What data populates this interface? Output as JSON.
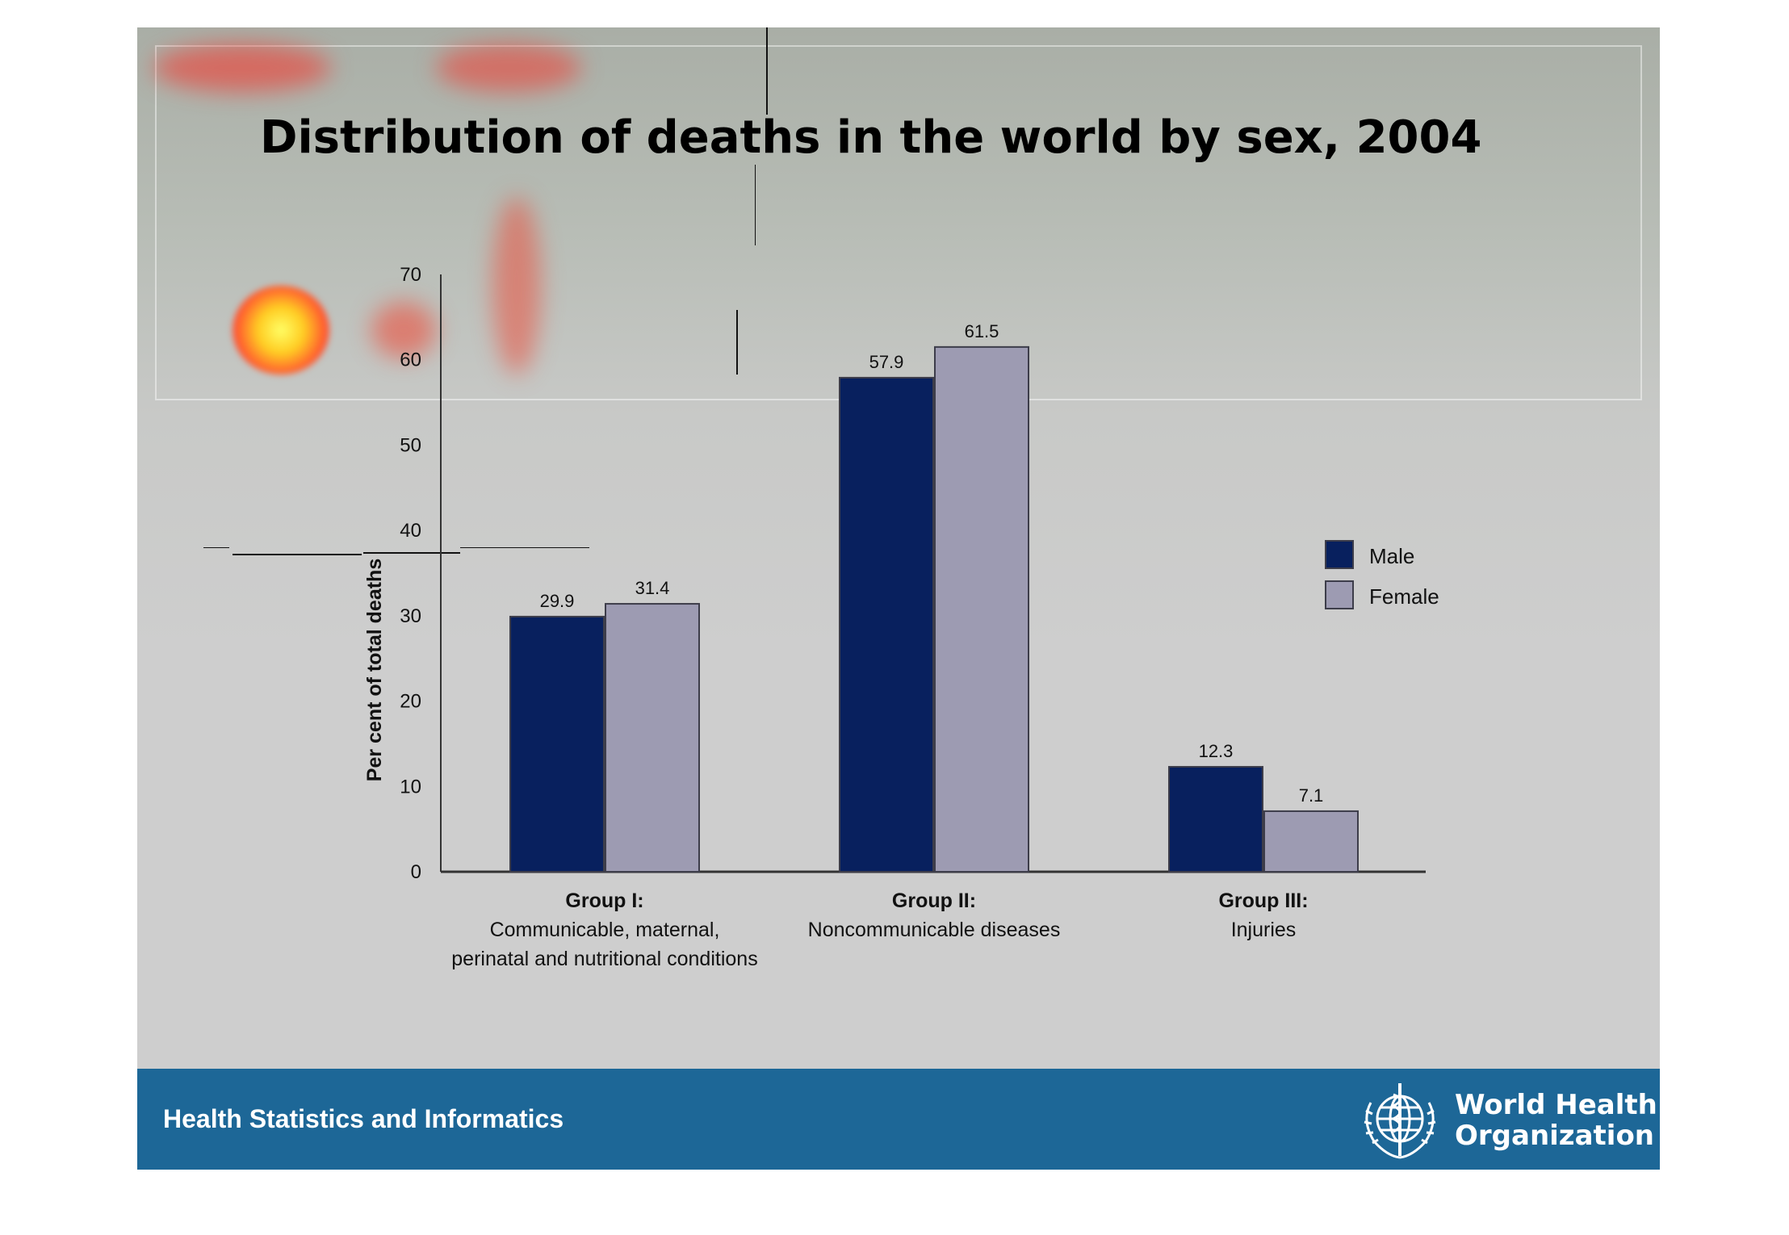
{
  "title": "Distribution of deaths in the world by sex, 2004",
  "footer": {
    "text": "Health Statistics and Informatics",
    "org_line1": "World Health",
    "org_line2": "Organization"
  },
  "colors": {
    "male": "#08205e",
    "female": "#9d9bb2",
    "footer": "#1d6797"
  },
  "chart_data": {
    "type": "bar",
    "title": "Distribution of deaths in the world by sex, 2004",
    "ylabel": "Per cent of total deaths",
    "xlabel": "",
    "ylim": [
      0,
      70
    ],
    "yticks": [
      "0",
      "10",
      "20",
      "30",
      "40",
      "50",
      "60",
      "70"
    ],
    "grid": false,
    "legend_position": "right",
    "categories": [
      {
        "name": "Group I:",
        "desc": [
          "Communicable, maternal,",
          "perinatal and nutritional conditions"
        ]
      },
      {
        "name": "Group II:",
        "desc": [
          "Noncommunicable diseases"
        ]
      },
      {
        "name": "Group III:",
        "desc": [
          "Injuries"
        ]
      }
    ],
    "series": [
      {
        "name": "Male",
        "color": "#08205e",
        "values": [
          29.9,
          57.9,
          12.3
        ],
        "labels": [
          "29.9",
          "57.9",
          "12.3"
        ]
      },
      {
        "name": "Female",
        "color": "#9d9bb2",
        "values": [
          31.4,
          61.5,
          7.1
        ],
        "labels": [
          "31.4",
          "61.5",
          "7.1"
        ]
      }
    ]
  }
}
